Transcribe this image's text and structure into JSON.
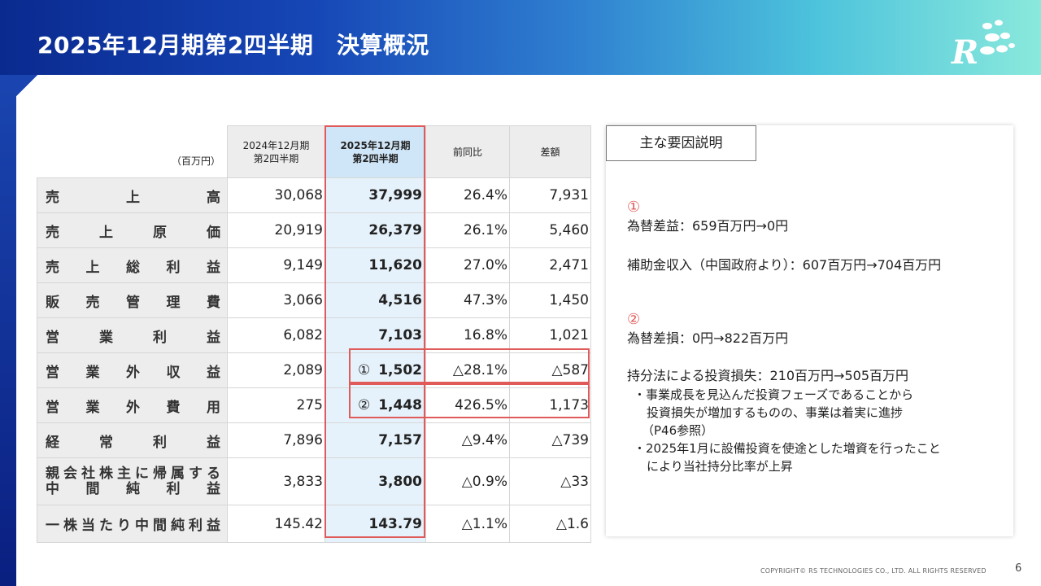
{
  "title": "2025年12月期第2四半期　決算概況",
  "table": {
    "unit": "（百万円）",
    "col_prev": [
      "2024年12月期",
      "第2四半期"
    ],
    "col_cur": [
      "2025年12月期",
      "第2四半期"
    ],
    "col_yoy": "前同比",
    "col_diff": "差額",
    "rows": [
      {
        "label": "売上高",
        "prev": "30,068",
        "cur": "37,999",
        "yoy": "26.4%",
        "diff": "7,931"
      },
      {
        "label": "売上原価",
        "prev": "20,919",
        "cur": "26,379",
        "yoy": "26.1%",
        "diff": "5,460"
      },
      {
        "label": "売上総利益",
        "prev": "9,149",
        "cur": "11,620",
        "yoy": "27.0%",
        "diff": "2,471"
      },
      {
        "label": "販売管理費",
        "prev": "3,066",
        "cur": "4,516",
        "yoy": "47.3%",
        "diff": "1,450"
      },
      {
        "label": "営業利益",
        "prev": "6,082",
        "cur": "7,103",
        "yoy": "16.8%",
        "diff": "1,021"
      },
      {
        "label": "営業外収益",
        "prev": "2,089",
        "marker": "①",
        "cur": "1,502",
        "yoy": "△28.1%",
        "diff": "△587"
      },
      {
        "label": "営業外費用",
        "prev": "275",
        "marker": "②",
        "cur": "1,448",
        "yoy": "426.5%",
        "diff": "1,173"
      },
      {
        "label": "経常利益",
        "prev": "7,896",
        "cur": "7,157",
        "yoy": "△9.4%",
        "diff": "△739"
      },
      {
        "label_line1": "親会社株主に帰属する",
        "label_line2": "中間純利益",
        "prev": "3,833",
        "cur": "3,800",
        "yoy": "△0.9%",
        "diff": "△33"
      },
      {
        "label": "一株当たり中間純利益",
        "prev": "145.42",
        "cur": "143.79",
        "yoy": "△1.1%",
        "diff": "△1.6"
      }
    ]
  },
  "panel": {
    "heading": "主な要因説明",
    "mark1": "①",
    "item1a": "為替差益：659百万円→0円",
    "item1b": "補助金収入（中国政府より）：607百万円→704百万円",
    "mark2": "②",
    "item2a": "為替差損：0円→822百万円",
    "item2b": "持分法による投資損失：210百万円→505百万円",
    "sub1": "・事業成長を見込んだ投資フェーズであることから",
    "sub2": "投資損失が増加するものの、事業は着実に進捗",
    "sub3": "（P46参照）",
    "sub4": "・2025年1月に設備投資を使途とした増資を行ったこと",
    "sub5": "により当社持分比率が上昇"
  },
  "footer": "COPYRIGHT© RS TECHNOLOGIES CO., LTD. ALL RIGHTS RESERVED",
  "page_number": "6",
  "colors": {
    "header_start": "#0a2a8f",
    "header_end": "#8ae9dc",
    "highlight": "#e05a5a",
    "current_col": "#e6f2fb"
  }
}
